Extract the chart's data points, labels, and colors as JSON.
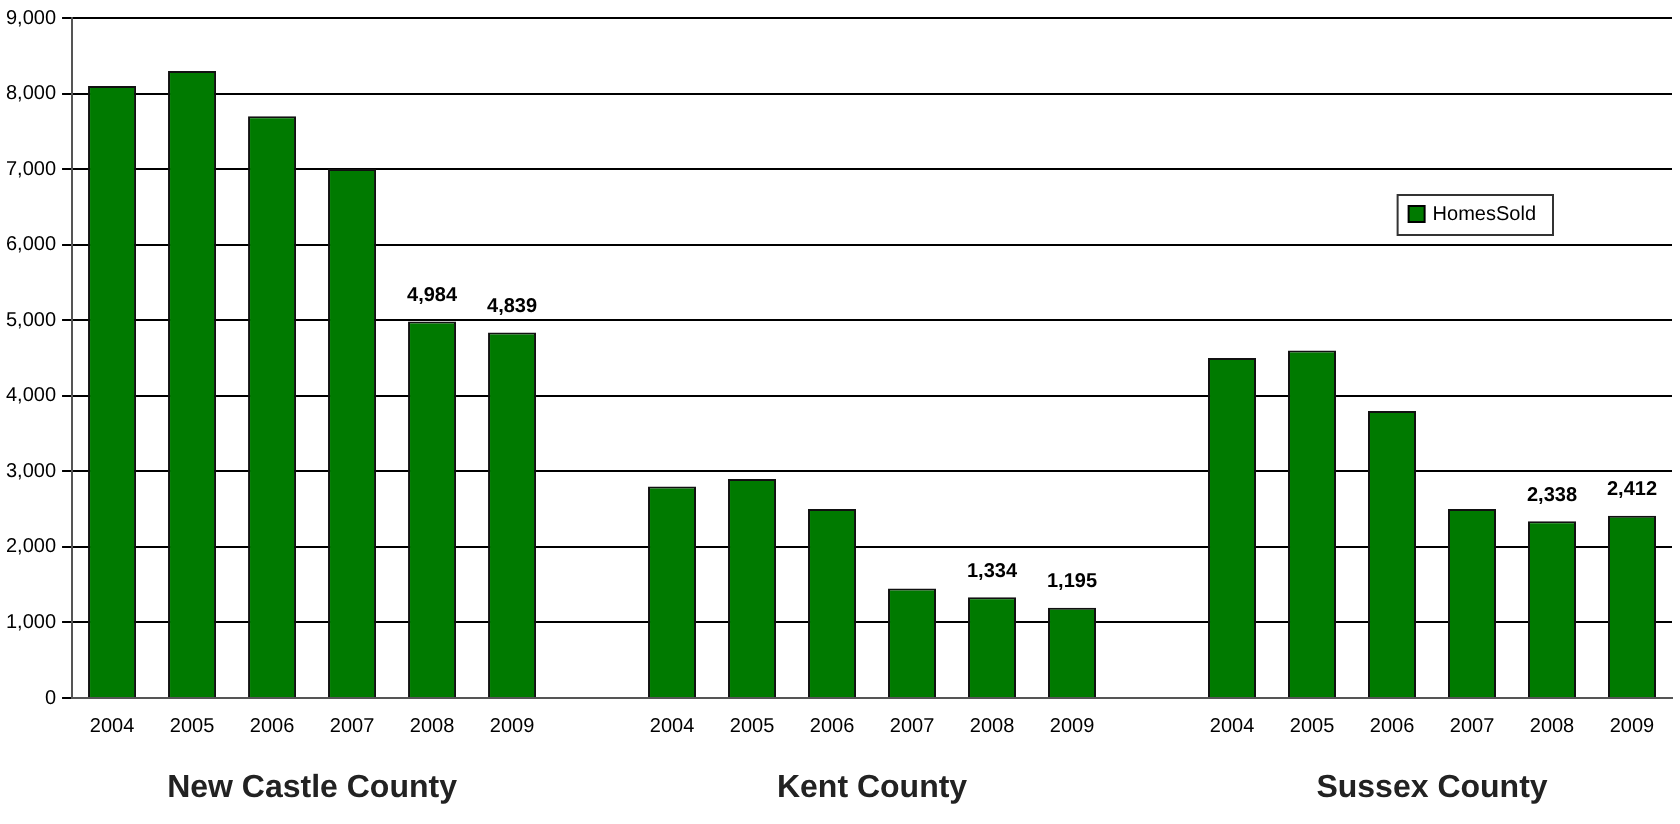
{
  "chart_data": {
    "type": "bar",
    "categories": [
      "2004",
      "2005",
      "2006",
      "2007",
      "2008",
      "2009",
      null,
      "2004",
      "2005",
      "2006",
      "2007",
      "2008",
      "2009",
      null,
      "2004",
      "2005",
      "2006",
      "2007",
      "2008",
      "2009"
    ],
    "series": [
      {
        "name": "HomesSold",
        "color": "#007a00",
        "values": [
          8100,
          8300,
          7700,
          7000,
          4984,
          4839,
          null,
          2800,
          2900,
          2500,
          1450,
          1334,
          1195,
          null,
          4500,
          4600,
          3800,
          2500,
          2338,
          2412
        ],
        "value_labels": [
          null,
          null,
          null,
          null,
          "4,984",
          "4,839",
          null,
          null,
          null,
          null,
          null,
          "1,334",
          "1,195",
          null,
          null,
          null,
          null,
          null,
          "2,338",
          "2,412"
        ]
      }
    ],
    "ylim": [
      0,
      9000
    ],
    "yticks": [
      {
        "value": 0,
        "label": "0"
      },
      {
        "value": 1000,
        "label": "1,000"
      },
      {
        "value": 2000,
        "label": "2,000"
      },
      {
        "value": 3000,
        "label": "3,000"
      },
      {
        "value": 4000,
        "label": "4,000"
      },
      {
        "value": 5000,
        "label": "5,000"
      },
      {
        "value": 6000,
        "label": "6,000"
      },
      {
        "value": 7000,
        "label": "7,000"
      },
      {
        "value": 8000,
        "label": "8,000"
      },
      {
        "value": 9000,
        "label": "9,000"
      }
    ],
    "grid": "y",
    "legend": "top right",
    "annotations": [
      "New Castle County",
      "Kent County",
      "Sussex County"
    ]
  }
}
